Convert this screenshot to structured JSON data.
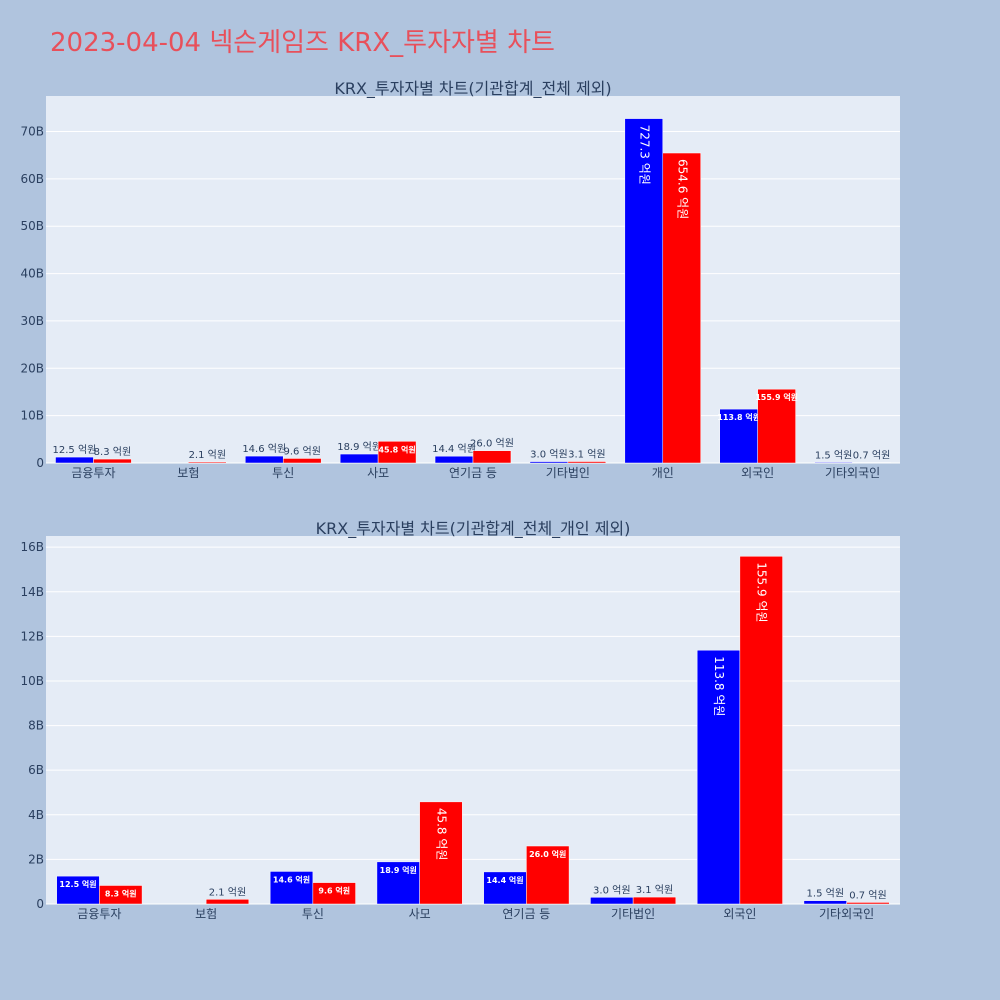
{
  "page": {
    "title": "2023-04-04 넥슨게임즈 KRX_투자자별 차트"
  },
  "colors": {
    "background": "#b0c4de",
    "plot_background": "#e5ecf6",
    "title": "#e8505b",
    "series_a": "#0000ff",
    "series_b": "#ff0000",
    "text": "#2a3f5f"
  },
  "chart_data": [
    {
      "type": "bar",
      "title": "KRX_투자자별 차트(기관합계_전체 제외)",
      "categories": [
        "금융투자",
        "보험",
        "투신",
        "사모",
        "연기금 등",
        "기타법인",
        "개인",
        "외국인",
        "기타외국인"
      ],
      "series": [
        {
          "color": "#0000ff",
          "values": [
            1.25,
            null,
            1.46,
            1.89,
            1.44,
            0.3,
            72.73,
            11.38,
            0.15
          ],
          "labels": [
            "12.5 억원",
            "",
            "14.6 억원",
            "18.9 억원",
            "14.4 억원",
            "3.0 억원",
            "727.3 억원",
            "113.8 억원",
            "1.5 억원"
          ]
        },
        {
          "color": "#ff0000",
          "values": [
            0.83,
            0.21,
            0.96,
            4.58,
            2.6,
            0.31,
            65.46,
            15.59,
            0.07
          ],
          "labels": [
            "8.3 억원",
            "2.1 억원",
            "9.6 억원",
            "45.8 억원",
            "26.0 억원",
            "3.1 억원",
            "654.6 억원",
            "155.9 억원",
            "0.7 억원"
          ]
        }
      ],
      "yunit": "B",
      "ylim": [
        0,
        77.5
      ],
      "yticks": [
        0,
        10,
        20,
        30,
        40,
        50,
        60,
        70
      ],
      "ytick_labels": [
        "0",
        "10B",
        "20B",
        "30B",
        "40B",
        "50B",
        "60B",
        "70B"
      ],
      "grid": true
    },
    {
      "type": "bar",
      "title": "KRX_투자자별 차트(기관합계_전체_개인 제외)",
      "categories": [
        "금융투자",
        "보험",
        "투신",
        "사모",
        "연기금 등",
        "기타법인",
        "외국인",
        "기타외국인"
      ],
      "series": [
        {
          "color": "#0000ff",
          "values": [
            1.25,
            null,
            1.46,
            1.89,
            1.44,
            0.3,
            11.38,
            0.15
          ],
          "labels": [
            "12.5 억원",
            "",
            "14.6 억원",
            "18.9 억원",
            "14.4 억원",
            "3.0 억원",
            "113.8 억원",
            "1.5 억원"
          ]
        },
        {
          "color": "#ff0000",
          "values": [
            0.83,
            0.21,
            0.96,
            4.58,
            2.6,
            0.31,
            15.59,
            0.07
          ],
          "labels": [
            "8.3 억원",
            "2.1 억원",
            "9.6 억원",
            "45.8 억원",
            "26.0 억원",
            "3.1 억원",
            "155.9 억원",
            "0.7 억원"
          ]
        }
      ],
      "yunit": "B",
      "ylim": [
        0,
        16.5
      ],
      "yticks": [
        0,
        2,
        4,
        6,
        8,
        10,
        12,
        14,
        16
      ],
      "ytick_labels": [
        "0",
        "2B",
        "4B",
        "6B",
        "8B",
        "10B",
        "12B",
        "14B",
        "16B"
      ],
      "grid": true
    }
  ]
}
